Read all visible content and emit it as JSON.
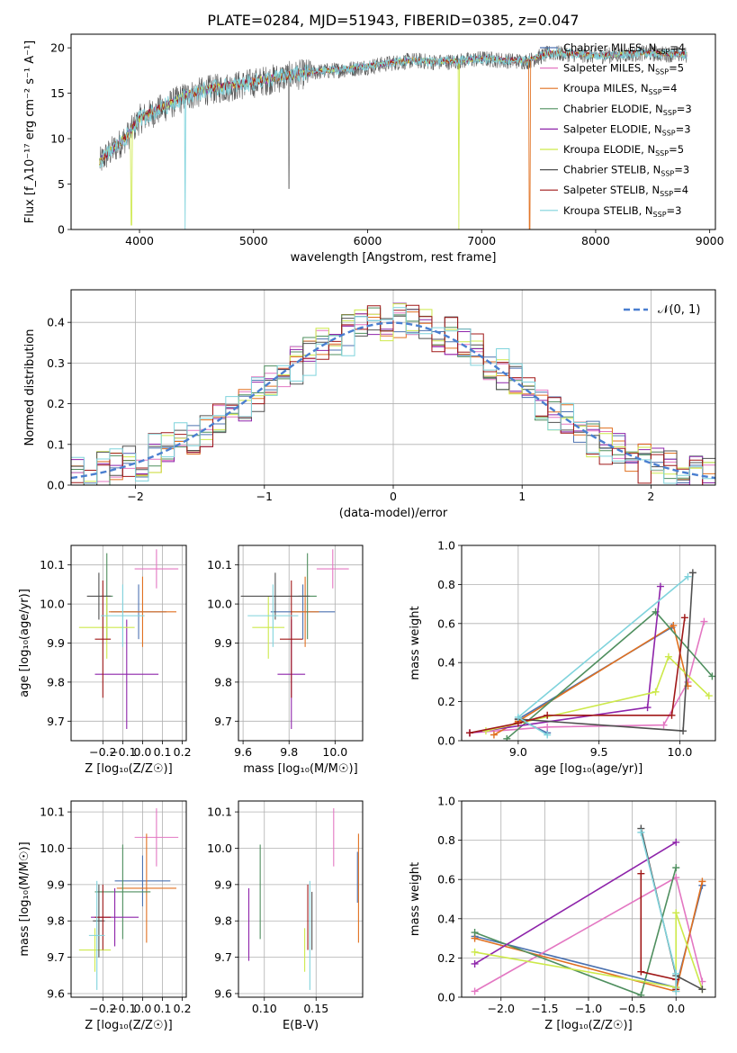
{
  "figure": {
    "title": "PLATE=0284, MJD=51943, FIBERID=0385, z=0.047"
  },
  "colors": {
    "Chabrier MILES": "#4c72b0",
    "Salpeter MILES": "#e377c2",
    "Kroupa MILES": "#e07020",
    "Chabrier ELODIE": "#4f8f5f",
    "Salpeter ELODIE": "#8e24aa",
    "Kroupa ELODIE": "#cde94b",
    "Chabrier STELIB": "#505050",
    "Salpeter STELIB": "#a01818",
    "Kroupa STELIB": "#7fd3dc",
    "normal": "#4a7fd0",
    "grid": "#b0b0b0"
  },
  "chart_data": [
    {
      "id": "spectrum",
      "type": "line",
      "xlabel": "wavelength [Angstrom, rest frame]",
      "ylabel": "Flux [f_λ10⁻¹⁷ erg cm⁻² s⁻¹ A⁻¹]",
      "xlim": [
        3400,
        9050
      ],
      "ylim": [
        0,
        21.5
      ],
      "xticks": [
        4000,
        5000,
        6000,
        7000,
        8000,
        9000
      ],
      "yticks": [
        0,
        5,
        10,
        15,
        20
      ],
      "grid": false,
      "legend_position": "right",
      "legend": [
        {
          "model": "Chabrier MILES",
          "nssp": "4"
        },
        {
          "model": "Salpeter MILES",
          "nssp": "5"
        },
        {
          "model": "Kroupa MILES",
          "nssp": "4"
        },
        {
          "model": "Chabrier ELODIE",
          "nssp": "3"
        },
        {
          "model": "Salpeter ELODIE",
          "nssp": "3"
        },
        {
          "model": "Kroupa ELODIE",
          "nssp": "5"
        },
        {
          "model": "Chabrier STELIB",
          "nssp": "3"
        },
        {
          "model": "Salpeter STELIB",
          "nssp": "4"
        },
        {
          "model": "Kroupa STELIB",
          "nssp": "3"
        }
      ],
      "continuum": {
        "x": [
          3650,
          3700,
          3800,
          3900,
          4000,
          4200,
          4400,
          4600,
          4800,
          5000,
          5200,
          5400,
          5600,
          5800,
          6000,
          6200,
          6400,
          6600,
          6800,
          7000,
          7200,
          7400,
          7600,
          7800,
          8000,
          8200,
          8400,
          8600,
          8800
        ],
        "y": [
          7.5,
          8.2,
          9.3,
          10.5,
          12.3,
          13.5,
          14.8,
          15.5,
          15.9,
          16.3,
          16.8,
          17.2,
          17.5,
          17.7,
          18.0,
          18.4,
          18.7,
          18.5,
          18.6,
          18.9,
          18.7,
          18.6,
          19.5,
          19.4,
          19.2,
          19.3,
          19.5,
          19.4,
          19.3
        ]
      },
      "dips": [
        {
          "x": 3930,
          "y": 0.5,
          "model": "Kroupa ELODIE"
        },
        {
          "x": 4400,
          "y": 0,
          "model": "Kroupa STELIB"
        },
        {
          "x": 5310,
          "y": 4.5,
          "model": "Chabrier STELIB"
        },
        {
          "x": 6800,
          "y": 0,
          "model": "Kroupa ELODIE"
        },
        {
          "x": 7420,
          "y": 0,
          "model": "Kroupa MILES"
        }
      ]
    },
    {
      "id": "residual_hist",
      "type": "histogram",
      "xlabel": "(data-model)/error",
      "ylabel": "Normed distribution",
      "xlim": [
        -2.5,
        2.5
      ],
      "ylim": [
        0,
        0.48
      ],
      "xticks": [
        -2,
        -1,
        0,
        1,
        2
      ],
      "yticks": [
        0.0,
        0.1,
        0.2,
        0.3,
        0.4
      ],
      "grid": true,
      "bin_width": 0.1,
      "reference": {
        "label": "𝒩(0, 1)",
        "mean": 0,
        "sigma": 1
      },
      "jitter": [
        0.012,
        -0.018,
        0.025,
        -0.009,
        0.031,
        -0.022,
        0.006,
        -0.035,
        0.019,
        0.038,
        -0.027,
        0.011,
        -0.014,
        0.029,
        -0.041,
        0.008,
        0.022,
        -0.006,
        -0.031,
        0.044,
        -0.017,
        0.003,
        0.027,
        -0.038,
        0.015,
        -0.024,
        0.034,
        -0.011,
        0.005,
        -0.029,
        0.041,
        -0.003,
        -0.021,
        0.018,
        0.009,
        -0.044,
        0.026,
        -0.013,
        0.037,
        -0.008,
        -0.032,
        0.014,
        0.021,
        -0.026,
        0.039,
        -0.016,
        0.002,
        -0.036,
        0.031,
        0.007
      ]
    },
    {
      "id": "age_vs_Z",
      "type": "errorbar",
      "xlabel": "Z [log₁₀(Z/Z☉)]",
      "ylabel": "age  [log₁₀(age/yr)]",
      "xlim": [
        -0.36,
        0.22
      ],
      "ylim": [
        9.65,
        10.15
      ],
      "xticks": [
        -0.2,
        -0.1,
        0.0,
        0.1,
        0.2
      ],
      "yticks": [
        9.7,
        9.8,
        9.9,
        10.0,
        10.1
      ],
      "grid": true,
      "points": [
        {
          "model": "Chabrier MILES",
          "x": -0.02,
          "y": 9.98,
          "xerr": 0.14,
          "yerr": 0.07
        },
        {
          "model": "Salpeter MILES",
          "x": 0.07,
          "y": 10.09,
          "xerr": 0.11,
          "yerr": 0.05
        },
        {
          "model": "Kroupa MILES",
          "x": 0.0,
          "y": 9.98,
          "xerr": 0.17,
          "yerr": 0.09
        },
        {
          "model": "Chabrier ELODIE",
          "x": -0.18,
          "y": 10.02,
          "xerr": 0.03,
          "yerr": 0.11
        },
        {
          "model": "Salpeter ELODIE",
          "x": -0.08,
          "y": 9.82,
          "xerr": 0.16,
          "yerr": 0.14
        },
        {
          "model": "Kroupa ELODIE",
          "x": -0.18,
          "y": 9.94,
          "xerr": 0.14,
          "yerr": 0.08
        },
        {
          "model": "Chabrier STELIB",
          "x": -0.22,
          "y": 10.02,
          "xerr": 0.06,
          "yerr": 0.06
        },
        {
          "model": "Salpeter STELIB",
          "x": -0.2,
          "y": 9.91,
          "xerr": 0.04,
          "yerr": 0.15
        },
        {
          "model": "Kroupa STELIB",
          "x": -0.1,
          "y": 9.97,
          "xerr": 0.11,
          "yerr": 0.08
        }
      ]
    },
    {
      "id": "age_vs_mass",
      "type": "errorbar",
      "xlabel": "mass [log₁₀(M/M☉)]",
      "ylabel": "",
      "xlim": [
        9.58,
        10.12
      ],
      "ylim": [
        9.65,
        10.15
      ],
      "xticks": [
        9.6,
        9.8,
        10.0
      ],
      "yticks": [
        9.7,
        9.8,
        9.9,
        10.0,
        10.1
      ],
      "grid": true,
      "points": [
        {
          "model": "Chabrier MILES",
          "x": 9.86,
          "y": 9.98,
          "xerr": 0.14,
          "yerr": 0.07
        },
        {
          "model": "Salpeter MILES",
          "x": 9.99,
          "y": 10.09,
          "xerr": 0.07,
          "yerr": 0.05
        },
        {
          "model": "Kroupa MILES",
          "x": 9.87,
          "y": 9.98,
          "xerr": 0.06,
          "yerr": 0.09
        },
        {
          "model": "Chabrier ELODIE",
          "x": 9.88,
          "y": 10.02,
          "xerr": 0.04,
          "yerr": 0.11
        },
        {
          "model": "Salpeter ELODIE",
          "x": 9.81,
          "y": 9.82,
          "xerr": 0.06,
          "yerr": 0.14
        },
        {
          "model": "Kroupa ELODIE",
          "x": 9.71,
          "y": 9.94,
          "xerr": 0.07,
          "yerr": 0.08
        },
        {
          "model": "Chabrier STELIB",
          "x": 9.74,
          "y": 10.02,
          "xerr": 0.15,
          "yerr": 0.06
        },
        {
          "model": "Salpeter STELIB",
          "x": 9.81,
          "y": 9.91,
          "xerr": 0.05,
          "yerr": 0.15
        },
        {
          "model": "Kroupa STELIB",
          "x": 9.73,
          "y": 9.97,
          "xerr": 0.11,
          "yerr": 0.08
        }
      ]
    },
    {
      "id": "mass_vs_Z",
      "type": "errorbar",
      "xlabel": "Z [log₁₀(Z/Z☉)]",
      "ylabel": "mass [log₁₀(M/M☉)]",
      "xlim": [
        -0.36,
        0.22
      ],
      "ylim": [
        9.59,
        10.13
      ],
      "xticks": [
        -0.2,
        -0.1,
        0.0,
        0.1,
        0.2
      ],
      "yticks": [
        9.6,
        9.7,
        9.8,
        9.9,
        10.0,
        10.1
      ],
      "grid": true,
      "points": [
        {
          "model": "Chabrier MILES",
          "x": 0.0,
          "y": 9.91,
          "xerr": 0.14,
          "yerr": 0.07
        },
        {
          "model": "Salpeter MILES",
          "x": 0.07,
          "y": 10.03,
          "xerr": 0.11,
          "yerr": 0.08
        },
        {
          "model": "Kroupa MILES",
          "x": 0.02,
          "y": 9.89,
          "xerr": 0.15,
          "yerr": 0.15
        },
        {
          "model": "Chabrier ELODIE",
          "x": -0.1,
          "y": 9.88,
          "xerr": 0.14,
          "yerr": 0.13
        },
        {
          "model": "Salpeter ELODIE",
          "x": -0.14,
          "y": 9.81,
          "xerr": 0.12,
          "yerr": 0.08
        },
        {
          "model": "Kroupa ELODIE",
          "x": -0.24,
          "y": 9.72,
          "xerr": 0.08,
          "yerr": 0.06
        },
        {
          "model": "Chabrier STELIB",
          "x": -0.22,
          "y": 9.8,
          "xerr": 0.03,
          "yerr": 0.1
        },
        {
          "model": "Salpeter STELIB",
          "x": -0.2,
          "y": 9.81,
          "xerr": 0.04,
          "yerr": 0.09
        },
        {
          "model": "Kroupa STELIB",
          "x": -0.23,
          "y": 9.76,
          "xerr": 0.04,
          "yerr": 0.15
        }
      ]
    },
    {
      "id": "mass_vs_ebv",
      "type": "errorbar",
      "xlabel": "E(B-V)",
      "ylabel": "",
      "xlim": [
        0.075,
        0.195
      ],
      "ylim": [
        9.59,
        10.13
      ],
      "xticks": [
        0.1,
        0.15
      ],
      "yticks": [
        9.6,
        9.7,
        9.8,
        9.9,
        10.0,
        10.1
      ],
      "grid": true,
      "points": [
        {
          "model": "Chabrier MILES",
          "x": 0.19,
          "y": 9.92,
          "xerr": 0.0,
          "yerr": 0.07
        },
        {
          "model": "Salpeter MILES",
          "x": 0.167,
          "y": 10.03,
          "xerr": 0.0,
          "yerr": 0.08
        },
        {
          "model": "Kroupa MILES",
          "x": 0.191,
          "y": 9.89,
          "xerr": 0.0,
          "yerr": 0.15
        },
        {
          "model": "Chabrier ELODIE",
          "x": 0.096,
          "y": 9.88,
          "xerr": 0.0,
          "yerr": 0.13
        },
        {
          "model": "Salpeter ELODIE",
          "x": 0.085,
          "y": 9.79,
          "xerr": 0.0,
          "yerr": 0.1
        },
        {
          "model": "Kroupa ELODIE",
          "x": 0.139,
          "y": 9.72,
          "xerr": 0.0,
          "yerr": 0.06
        },
        {
          "model": "Chabrier STELIB",
          "x": 0.146,
          "y": 9.8,
          "xerr": 0.0,
          "yerr": 0.08
        },
        {
          "model": "Salpeter STELIB",
          "x": 0.142,
          "y": 9.81,
          "xerr": 0.0,
          "yerr": 0.09
        },
        {
          "model": "Kroupa STELIB",
          "x": 0.144,
          "y": 9.76,
          "xerr": 0.0,
          "yerr": 0.15
        }
      ]
    },
    {
      "id": "weight_vs_age",
      "type": "line",
      "xlabel": "age  [log₁₀(age/yr)]",
      "ylabel": "mass weight",
      "xlim": [
        8.65,
        10.22
      ],
      "ylim": [
        0,
        1.0
      ],
      "xticks": [
        9.0,
        9.5,
        10.0
      ],
      "yticks": [
        0.0,
        0.2,
        0.4,
        0.6,
        0.8,
        1.0
      ],
      "grid": true,
      "series": [
        {
          "model": "Chabrier MILES",
          "x": [
            9.18,
            9.0,
            9.95
          ],
          "y": [
            0.04,
            0.11,
            0.58
          ]
        },
        {
          "model": "Salpeter MILES",
          "x": [
            8.7,
            9.18,
            9.9,
            10.05,
            10.15
          ],
          "y": [
            0.04,
            0.07,
            0.08,
            0.3,
            0.61
          ]
        },
        {
          "model": "Kroupa MILES",
          "x": [
            8.85,
            9.0,
            9.96,
            10.05
          ],
          "y": [
            0.03,
            0.1,
            0.59,
            0.28
          ]
        },
        {
          "model": "Chabrier ELODIE",
          "x": [
            8.93,
            9.85,
            10.2
          ],
          "y": [
            0.01,
            0.66,
            0.33
          ]
        },
        {
          "model": "Salpeter ELODIE",
          "x": [
            8.7,
            9.8,
            9.88
          ],
          "y": [
            0.04,
            0.17,
            0.79
          ]
        },
        {
          "model": "Kroupa ELODIE",
          "x": [
            8.8,
            9.85,
            9.93,
            10.18
          ],
          "y": [
            0.05,
            0.25,
            0.43,
            0.23
          ]
        },
        {
          "model": "Chabrier STELIB",
          "x": [
            9.0,
            10.02,
            10.08
          ],
          "y": [
            0.11,
            0.05,
            0.86
          ]
        },
        {
          "model": "Salpeter STELIB",
          "x": [
            8.7,
            9.0,
            9.18,
            9.95,
            10.03
          ],
          "y": [
            0.04,
            0.09,
            0.13,
            0.13,
            0.63
          ]
        },
        {
          "model": "Kroupa STELIB",
          "x": [
            9.18,
            9.0,
            10.05
          ],
          "y": [
            0.03,
            0.12,
            0.84
          ]
        }
      ]
    },
    {
      "id": "weight_vs_Z",
      "type": "line",
      "xlabel": "Z [log₁₀(Z/Z☉)]",
      "ylabel": "mass weight",
      "xlim": [
        -2.45,
        0.45
      ],
      "ylim": [
        0,
        1.0
      ],
      "xticks": [
        -2.0,
        -1.5,
        -1.0,
        -0.5,
        0.0
      ],
      "yticks": [
        0.0,
        0.2,
        0.4,
        0.6,
        0.8,
        1.0
      ],
      "grid": true,
      "series": [
        {
          "model": "Chabrier MILES",
          "x": [
            -2.3,
            0.0,
            0.3
          ],
          "y": [
            0.31,
            0.05,
            0.57
          ]
        },
        {
          "model": "Salpeter MILES",
          "x": [
            -2.3,
            0.0,
            0.3
          ],
          "y": [
            0.03,
            0.61,
            0.08
          ]
        },
        {
          "model": "Kroupa MILES",
          "x": [
            -2.3,
            0.0,
            0.3
          ],
          "y": [
            0.3,
            0.03,
            0.59
          ]
        },
        {
          "model": "Chabrier ELODIE",
          "x": [
            -2.3,
            -0.4,
            0.0
          ],
          "y": [
            0.33,
            0.01,
            0.66
          ]
        },
        {
          "model": "Salpeter ELODIE",
          "x": [
            -2.3,
            0.0
          ],
          "y": [
            0.17,
            0.79
          ]
        },
        {
          "model": "Kroupa ELODIE",
          "x": [
            -2.3,
            0.0,
            0.0,
            0.3
          ],
          "y": [
            0.23,
            0.05,
            0.43,
            0.04
          ]
        },
        {
          "model": "Chabrier STELIB",
          "x": [
            -0.4,
            0.0,
            0.3
          ],
          "y": [
            0.86,
            0.11,
            0.04
          ]
        },
        {
          "model": "Salpeter STELIB",
          "x": [
            -0.4,
            -0.4,
            0.0,
            0.0
          ],
          "y": [
            0.63,
            0.13,
            0.09,
            0.04
          ]
        },
        {
          "model": "Kroupa STELIB",
          "x": [
            -0.4,
            0.0,
            0.0
          ],
          "y": [
            0.84,
            0.12,
            0.03
          ]
        }
      ]
    }
  ]
}
